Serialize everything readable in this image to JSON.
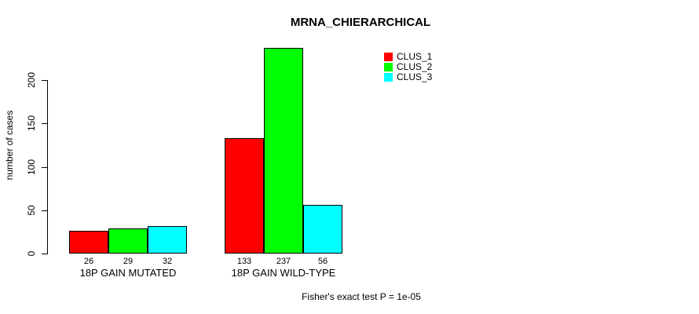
{
  "title": "MRNA_CHIERARCHICAL",
  "y_axis": {
    "label": "number of cases",
    "ticks": [
      0,
      50,
      100,
      150,
      200
    ]
  },
  "legend": {
    "items": [
      {
        "label": "CLUS_1",
        "color": "#ff0000"
      },
      {
        "label": "CLUS_2",
        "color": "#00ff00"
      },
      {
        "label": "CLUS_3",
        "color": "#00ffff"
      }
    ]
  },
  "footer": "Fisher's exact test P = 1e-05",
  "chart_data": {
    "type": "bar",
    "title": "MRNA_CHIERARCHICAL",
    "categories": [
      "18P GAIN MUTATED",
      "18P GAIN WILD-TYPE"
    ],
    "series": [
      {
        "name": "CLUS_1",
        "color": "#ff0000",
        "values": [
          26,
          133
        ]
      },
      {
        "name": "CLUS_2",
        "color": "#00ff00",
        "values": [
          29,
          237
        ]
      },
      {
        "name": "CLUS_3",
        "color": "#00ffff",
        "values": [
          32,
          56
        ]
      }
    ],
    "xlabel": "",
    "ylabel": "number of cases",
    "ylim": [
      0,
      200
    ],
    "yticks": [
      0,
      50,
      100,
      150,
      200
    ],
    "bar_value_labels_shown": true,
    "grid": false,
    "legend_position": "top-right",
    "annotation": "Fisher's exact test P = 1e-05"
  }
}
